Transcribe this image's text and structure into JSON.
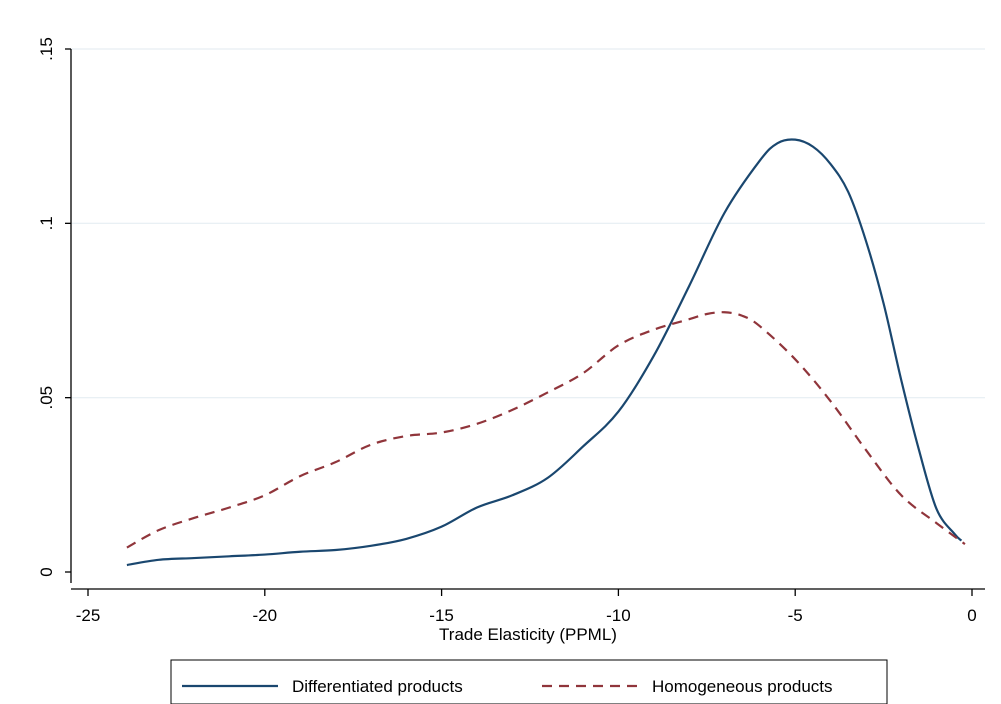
{
  "chart_data": {
    "type": "line",
    "title": "",
    "xlabel": "Trade Elasticity (PPML)",
    "ylabel": "",
    "xlim": [
      -25,
      0
    ],
    "ylim": [
      0,
      0.15
    ],
    "x_ticks": [
      -25,
      -20,
      -15,
      -10,
      -5,
      0
    ],
    "x_tick_labels": [
      "-25",
      "-20",
      "-15",
      "-10",
      "-5",
      "0"
    ],
    "y_ticks": [
      0,
      0.05,
      0.1,
      0.15
    ],
    "y_tick_labels": [
      "0",
      ".05",
      ".1",
      ".15"
    ],
    "grid": "horizontal",
    "legend_position": "bottom",
    "series": [
      {
        "name": "Differentiated products",
        "color": "#1a476f",
        "style": "solid",
        "x": [
          -23.9,
          -23.0,
          -22.0,
          -21.0,
          -20.0,
          -19.0,
          -18.0,
          -17.0,
          -16.0,
          -15.0,
          -14.0,
          -13.0,
          -12.0,
          -11.0,
          -10.0,
          -9.0,
          -8.0,
          -7.0,
          -6.0,
          -5.5,
          -5.0,
          -4.5,
          -4.0,
          -3.5,
          -3.0,
          -2.5,
          -2.0,
          -1.5,
          -1.0,
          -0.5,
          -0.3
        ],
        "y": [
          0.002,
          0.0035,
          0.004,
          0.0045,
          0.005,
          0.0058,
          0.0063,
          0.0075,
          0.0095,
          0.013,
          0.0185,
          0.022,
          0.027,
          0.036,
          0.046,
          0.062,
          0.082,
          0.103,
          0.118,
          0.123,
          0.124,
          0.122,
          0.117,
          0.109,
          0.095,
          0.077,
          0.055,
          0.035,
          0.018,
          0.011,
          0.009
        ]
      },
      {
        "name": "Homogeneous products",
        "color": "#90353b",
        "style": "dashed",
        "x": [
          -23.9,
          -23.0,
          -22.0,
          -21.0,
          -20.0,
          -19.0,
          -18.0,
          -17.0,
          -16.0,
          -15.0,
          -14.0,
          -13.0,
          -12.0,
          -11.0,
          -10.0,
          -9.0,
          -8.0,
          -7.5,
          -7.0,
          -6.5,
          -6.0,
          -5.0,
          -4.0,
          -3.0,
          -2.0,
          -1.0,
          -0.2
        ],
        "y": [
          0.007,
          0.012,
          0.0155,
          0.0185,
          0.022,
          0.0275,
          0.0315,
          0.0365,
          0.039,
          0.04,
          0.0425,
          0.0465,
          0.0515,
          0.057,
          0.065,
          0.0695,
          0.0725,
          0.074,
          0.0745,
          0.0735,
          0.0705,
          0.061,
          0.049,
          0.035,
          0.022,
          0.014,
          0.008
        ]
      }
    ]
  }
}
